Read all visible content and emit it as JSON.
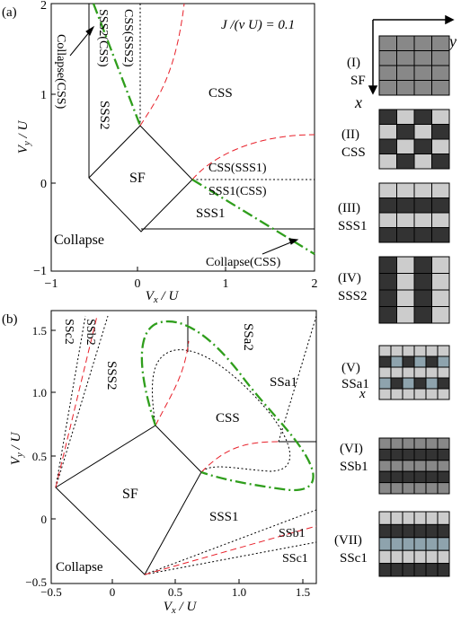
{
  "panel_a": {
    "label": "(a)",
    "param": "J /(ν U) = 0.1",
    "xlabel": "V",
    "xlabel_sub": "x",
    "xlabel_suffix": " / U",
    "ylabel": "V",
    "ylabel_sub": "y",
    "ylabel_suffix": " / U",
    "xticks": [
      "−1",
      "0",
      "1",
      "2"
    ],
    "yticks": [
      "2",
      "1",
      "0",
      "−1"
    ],
    "regions": {
      "css": "CSS",
      "sf": "SF",
      "sss1": "SSS1",
      "sss2": "SSS2",
      "collapse": "Collapse",
      "css_sss1": "CSS(SSS1)",
      "sss1_css": "SSS1(CSS)",
      "sss2_css": "SSS2(CSS)",
      "css_sss2": "CSS(SSS2)",
      "collapse_css_top": "Collapse(CSS)",
      "collapse_css_bottom": "Collapse(CSS)"
    }
  },
  "panel_b": {
    "label": "(b)",
    "xlabel": "V",
    "xlabel_sub": "x",
    "xlabel_suffix": " / U",
    "ylabel": "V",
    "ylabel_sub": "y",
    "ylabel_suffix": " / U",
    "xticks": [
      "−0.5",
      "0",
      "0.5",
      "1.0",
      "1.5"
    ],
    "yticks": [
      "1.5",
      "1.0",
      "0.5",
      "0",
      "−0.5"
    ],
    "regions": {
      "css": "CSS",
      "sf": "SF",
      "sss1": "SSS1",
      "sss2": "SSS2",
      "collapse": "Collapse",
      "ssa1": "SSa1",
      "ssa2": "SSa2",
      "ssb1": "SSb1",
      "ssb2": "SSb2",
      "ssc1": "SSc1",
      "ssc2": "SSc2"
    }
  },
  "lattice": {
    "axis_x": "x",
    "axis_y": "y",
    "axis_x2": "x",
    "items": [
      {
        "roman": "(I)",
        "name": "SF"
      },
      {
        "roman": "(II)",
        "name": "CSS"
      },
      {
        "roman": "(III)",
        "name": "SSS1"
      },
      {
        "roman": "(IV)",
        "name": "SSS2"
      },
      {
        "roman": "(V)",
        "name": "SSa1"
      },
      {
        "roman": "(VI)",
        "name": "SSb1"
      },
      {
        "roman": "(VII)",
        "name": "SSc1"
      }
    ]
  },
  "colors": {
    "dark": "#333333",
    "mid": "#888888",
    "light": "#cccccc",
    "teal": "#8ea3ad",
    "red": "#e8202a",
    "green": "#2f9e1c"
  }
}
